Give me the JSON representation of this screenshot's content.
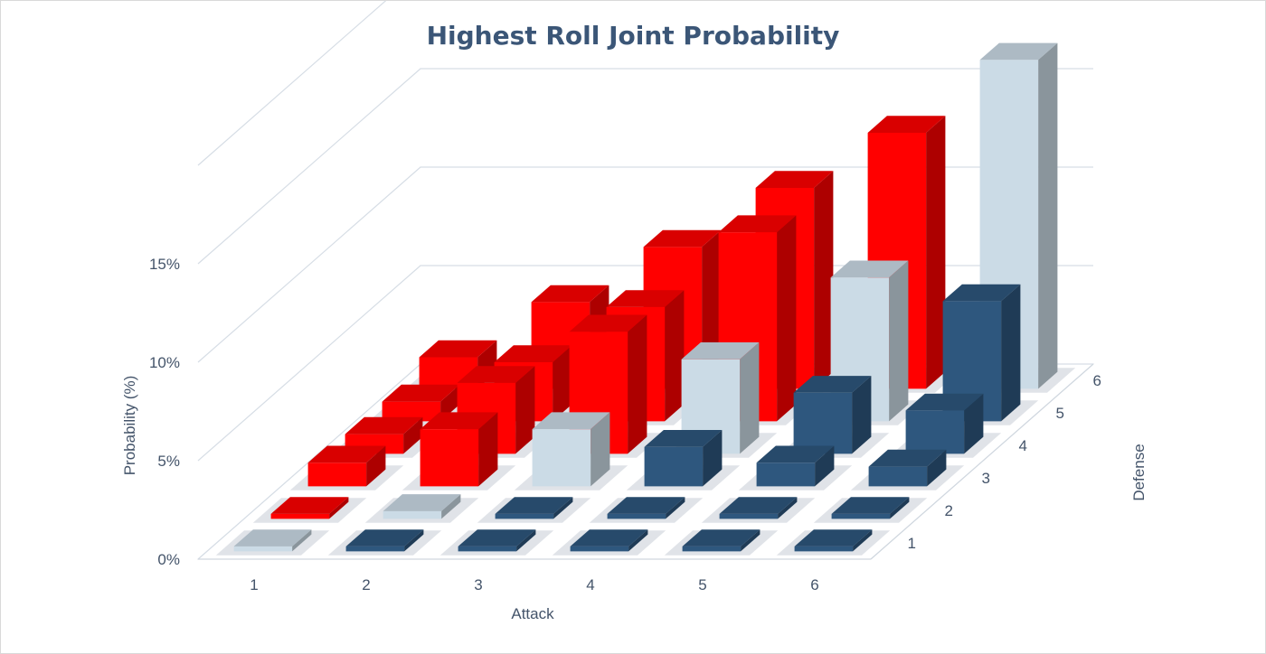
{
  "chart_data": {
    "type": "bar3d",
    "title": "Highest Roll Joint Probability",
    "xlabel": "Attack",
    "ylabel": "Probability (%)",
    "zlabel": "Defense",
    "x_categories": [
      "1",
      "2",
      "3",
      "4",
      "5",
      "6"
    ],
    "z_categories": [
      "1",
      "2",
      "3",
      "4",
      "5",
      "6"
    ],
    "y_ticks": [
      "0%",
      "5%",
      "10%",
      "15%"
    ],
    "ylim": [
      0,
      20
    ],
    "grid": true,
    "colors": {
      "attack_wins": "#ff0000",
      "defense_wins": "#2e577e",
      "tie": "#cbdbe6"
    },
    "cells": [
      [
        0.09,
        0.0,
        0.0,
        0.0,
        0.0,
        0.0
      ],
      [
        0.19,
        0.39,
        0.0,
        0.0,
        0.0,
        0.0
      ],
      [
        1.2,
        2.9,
        2.9,
        2.0,
        1.2,
        1.0
      ],
      [
        1.0,
        3.6,
        6.2,
        4.8,
        3.1,
        2.2
      ],
      [
        1.0,
        3.0,
        5.8,
        9.6,
        7.3,
        6.1
      ],
      [
        1.6,
        4.4,
        7.2,
        10.2,
        13.0,
        16.7
      ]
    ],
    "cell_outcome": [
      [
        "tie",
        "defense",
        "defense",
        "defense",
        "defense",
        "defense"
      ],
      [
        "attack",
        "tie",
        "defense",
        "defense",
        "defense",
        "defense"
      ],
      [
        "attack",
        "attack",
        "tie",
        "defense",
        "defense",
        "defense"
      ],
      [
        "attack",
        "attack",
        "attack",
        "tie",
        "defense",
        "defense"
      ],
      [
        "attack",
        "attack",
        "attack",
        "attack",
        "tie",
        "defense"
      ],
      [
        "attack",
        "attack",
        "attack",
        "attack",
        "attack",
        "tie"
      ]
    ]
  }
}
